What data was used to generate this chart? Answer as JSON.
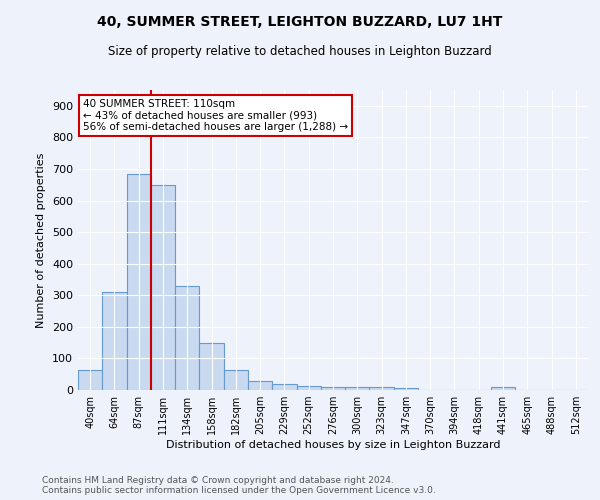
{
  "title": "40, SUMMER STREET, LEIGHTON BUZZARD, LU7 1HT",
  "subtitle": "Size of property relative to detached houses in Leighton Buzzard",
  "xlabel": "Distribution of detached houses by size in Leighton Buzzard",
  "ylabel": "Number of detached properties",
  "bin_labels": [
    "40sqm",
    "64sqm",
    "87sqm",
    "111sqm",
    "134sqm",
    "158sqm",
    "182sqm",
    "205sqm",
    "229sqm",
    "252sqm",
    "276sqm",
    "300sqm",
    "323sqm",
    "347sqm",
    "370sqm",
    "394sqm",
    "418sqm",
    "441sqm",
    "465sqm",
    "488sqm",
    "512sqm"
  ],
  "bar_values": [
    63,
    310,
    685,
    648,
    328,
    150,
    63,
    30,
    20,
    12,
    10,
    8,
    8,
    6,
    0,
    0,
    0,
    8,
    0,
    0,
    0
  ],
  "bar_color": "#c8d9f0",
  "bar_edge_color": "#6699cc",
  "property_line_color": "#cc0000",
  "annotation_text": "40 SUMMER STREET: 110sqm\n← 43% of detached houses are smaller (993)\n56% of semi-detached houses are larger (1,288) →",
  "annotation_box_color": "#ffffff",
  "annotation_box_edge_color": "#cc0000",
  "footer_text": "Contains HM Land Registry data © Crown copyright and database right 2024.\nContains public sector information licensed under the Open Government Licence v3.0.",
  "background_color": "#eef2fb",
  "ylim": [
    0,
    950
  ],
  "yticks": [
    0,
    100,
    200,
    300,
    400,
    500,
    600,
    700,
    800,
    900
  ]
}
